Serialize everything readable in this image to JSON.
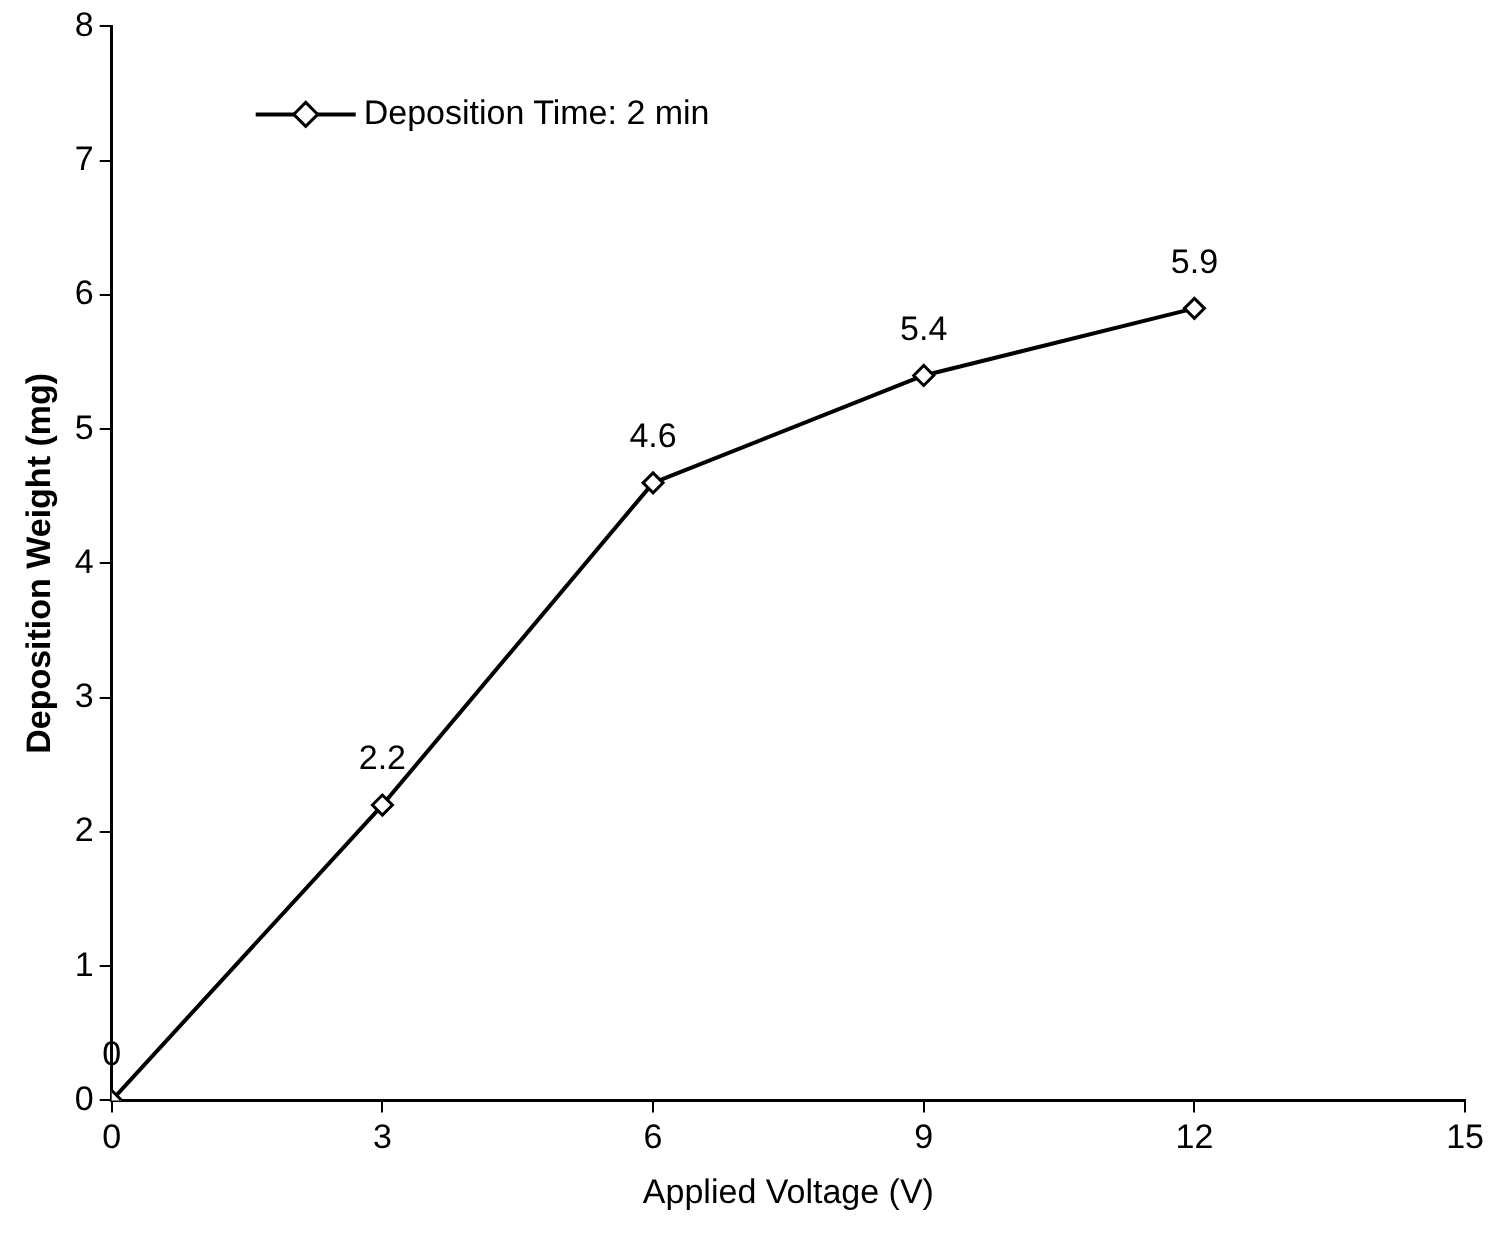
{
  "chart_data": {
    "type": "line",
    "xlabel": "Applied Voltage (V)",
    "ylabel": "Deposition Weight (mg)",
    "x": [
      0,
      3,
      6,
      9,
      12
    ],
    "series": [
      {
        "name": "Deposition Time: 2 min",
        "color": "#000000",
        "values": [
          0,
          2.2,
          4.6,
          5.4,
          5.9
        ]
      }
    ],
    "xlim": [
      0,
      15
    ],
    "xticks": [
      0,
      3,
      6,
      9,
      12,
      15
    ],
    "ylim": [
      0,
      8
    ],
    "yticks": [
      0,
      1,
      2,
      3,
      4,
      5,
      6,
      7,
      8
    ],
    "marker": "diamond",
    "line_style": "solid",
    "legend": "top left",
    "data_labels": true
  }
}
